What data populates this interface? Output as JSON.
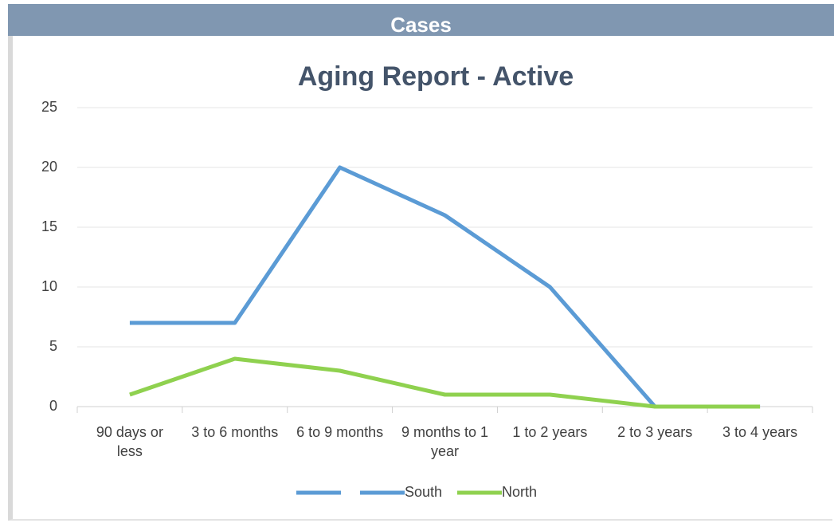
{
  "header": {
    "title": "Cases"
  },
  "chart_data": {
    "type": "line",
    "title": "Aging Report - Active",
    "categories": [
      "90 days or less",
      "3 to 6 months",
      "6 to 9 months",
      "9 months to 1 year",
      "1 to 2 years",
      "2 to 3 years",
      "3 to 4 years"
    ],
    "series": [
      {
        "name": "South",
        "color": "#5b9bd5",
        "values": [
          7,
          7,
          20,
          16,
          10,
          0,
          0
        ]
      },
      {
        "name": "North",
        "color": "#8fd14f",
        "values": [
          1,
          4,
          3,
          1,
          1,
          0,
          0
        ]
      }
    ],
    "ylim": [
      0,
      25
    ],
    "yticks": [
      0,
      5,
      10,
      15,
      20,
      25
    ],
    "grid": true,
    "legend": "bottom"
  }
}
